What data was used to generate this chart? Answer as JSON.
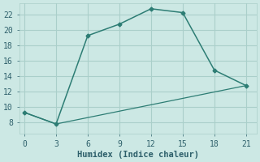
{
  "xlabel": "Humidex (Indice chaleur)",
  "line1_x": [
    0,
    3,
    6,
    9,
    12,
    15,
    18,
    21
  ],
  "line1_y": [
    9.3,
    7.8,
    19.3,
    20.8,
    22.8,
    22.3,
    14.8,
    12.8
  ],
  "line2_x": [
    0,
    3,
    21
  ],
  "line2_y": [
    9.3,
    7.8,
    12.8
  ],
  "line_color": "#2d7d74",
  "marker": "D",
  "marker_size": 2.5,
  "xlim": [
    -0.5,
    22
  ],
  "ylim": [
    6.5,
    23.5
  ],
  "xticks": [
    0,
    3,
    6,
    9,
    12,
    15,
    18,
    21
  ],
  "yticks": [
    8,
    10,
    12,
    14,
    16,
    18,
    20,
    22
  ],
  "bg_color": "#cce8e4",
  "grid_color": "#aacfca",
  "font_color": "#2d5f6a",
  "label_fontsize": 7.5,
  "tick_fontsize": 7.0
}
